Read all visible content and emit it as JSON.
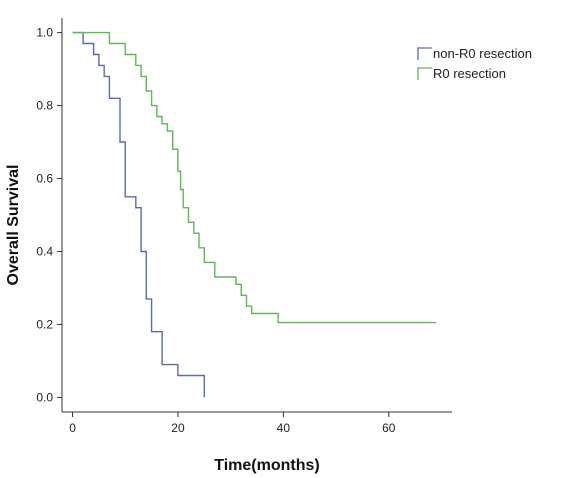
{
  "chart_data": {
    "type": "line",
    "title": "",
    "xlabel": "Time(months)",
    "ylabel": "Overall Survival",
    "xlim": [
      -2,
      72
    ],
    "ylim": [
      -0.04,
      1.04
    ],
    "xticks": [
      0,
      20,
      40,
      60
    ],
    "yticks": [
      0.0,
      0.2,
      0.4,
      0.6,
      0.8,
      1.0
    ],
    "xtick_labels": [
      "0",
      "20",
      "40",
      "60"
    ],
    "ytick_labels": [
      "0.0",
      "0.2",
      "0.4",
      "0.6",
      "0.8",
      "1.0"
    ],
    "grid": false,
    "legend_position": "top-right",
    "step": true,
    "series": [
      {
        "name": "non-R0 resection",
        "color": "#5a6bb0",
        "points": [
          [
            0,
            1.0
          ],
          [
            2,
            0.97
          ],
          [
            4,
            0.94
          ],
          [
            5,
            0.91
          ],
          [
            6,
            0.88
          ],
          [
            7,
            0.82
          ],
          [
            9,
            0.7
          ],
          [
            10,
            0.55
          ],
          [
            12,
            0.52
          ],
          [
            13,
            0.4
          ],
          [
            14,
            0.27
          ],
          [
            15,
            0.18
          ],
          [
            17,
            0.09
          ],
          [
            20,
            0.06
          ],
          [
            25,
            0.0
          ]
        ]
      },
      {
        "name": "R0 resection",
        "color": "#64b45a",
        "points": [
          [
            0,
            1.0
          ],
          [
            7,
            0.97
          ],
          [
            10,
            0.94
          ],
          [
            12,
            0.91
          ],
          [
            13,
            0.88
          ],
          [
            14,
            0.84
          ],
          [
            15,
            0.8
          ],
          [
            16,
            0.77
          ],
          [
            17,
            0.75
          ],
          [
            18,
            0.73
          ],
          [
            19,
            0.68
          ],
          [
            20,
            0.62
          ],
          [
            20.5,
            0.57
          ],
          [
            21,
            0.52
          ],
          [
            22,
            0.48
          ],
          [
            23,
            0.45
          ],
          [
            24,
            0.41
          ],
          [
            25,
            0.37
          ],
          [
            27,
            0.33
          ],
          [
            31,
            0.31
          ],
          [
            32,
            0.28
          ],
          [
            33,
            0.25
          ],
          [
            34,
            0.23
          ],
          [
            39,
            0.205
          ],
          [
            69,
            0.205
          ]
        ]
      }
    ]
  }
}
